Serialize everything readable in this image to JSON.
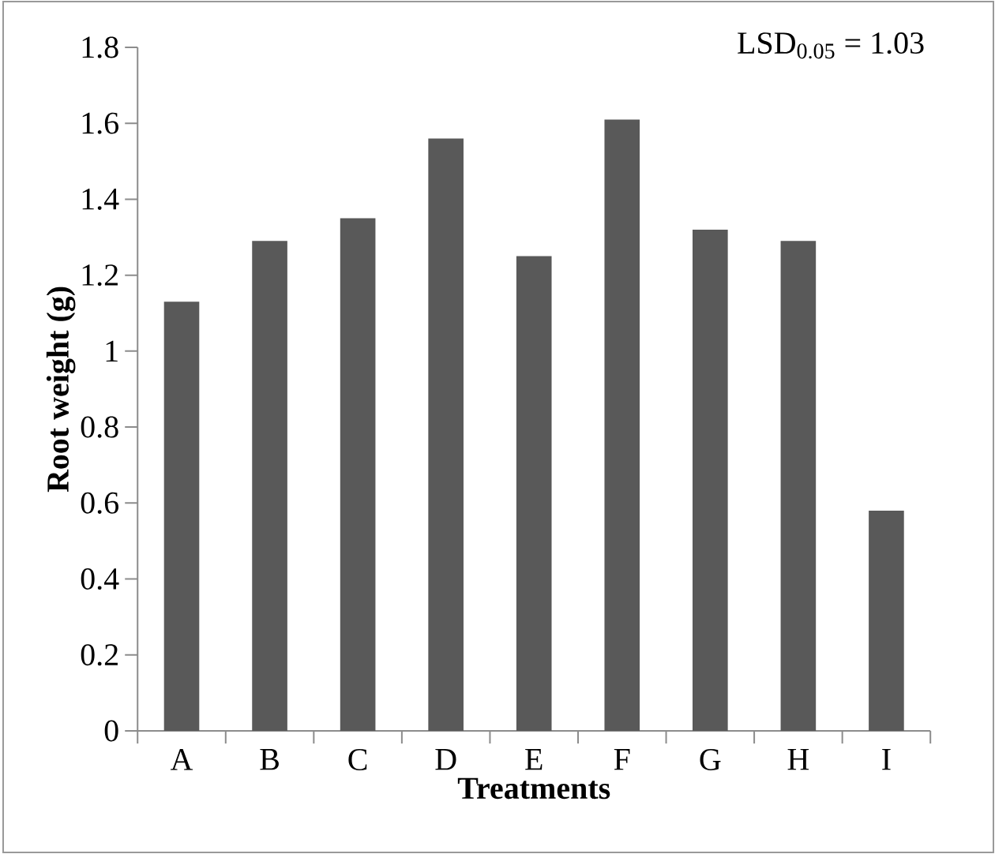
{
  "chart_data": {
    "type": "bar",
    "categories": [
      "A",
      "B",
      "C",
      "D",
      "E",
      "F",
      "G",
      "H",
      "I"
    ],
    "values": [
      1.13,
      1.29,
      1.35,
      1.56,
      1.25,
      1.61,
      1.32,
      1.29,
      0.58
    ],
    "color": "#595959",
    "xlabel": "Treatments",
    "ylabel": "Root weight (g)",
    "ylim": [
      0,
      1.8
    ],
    "yticks": [
      0,
      0.2,
      0.4,
      0.6,
      0.8,
      1,
      1.2,
      1.4,
      1.6,
      1.8
    ],
    "annotations": [
      "LSD$_{0.05}$ = 1.03"
    ]
  }
}
